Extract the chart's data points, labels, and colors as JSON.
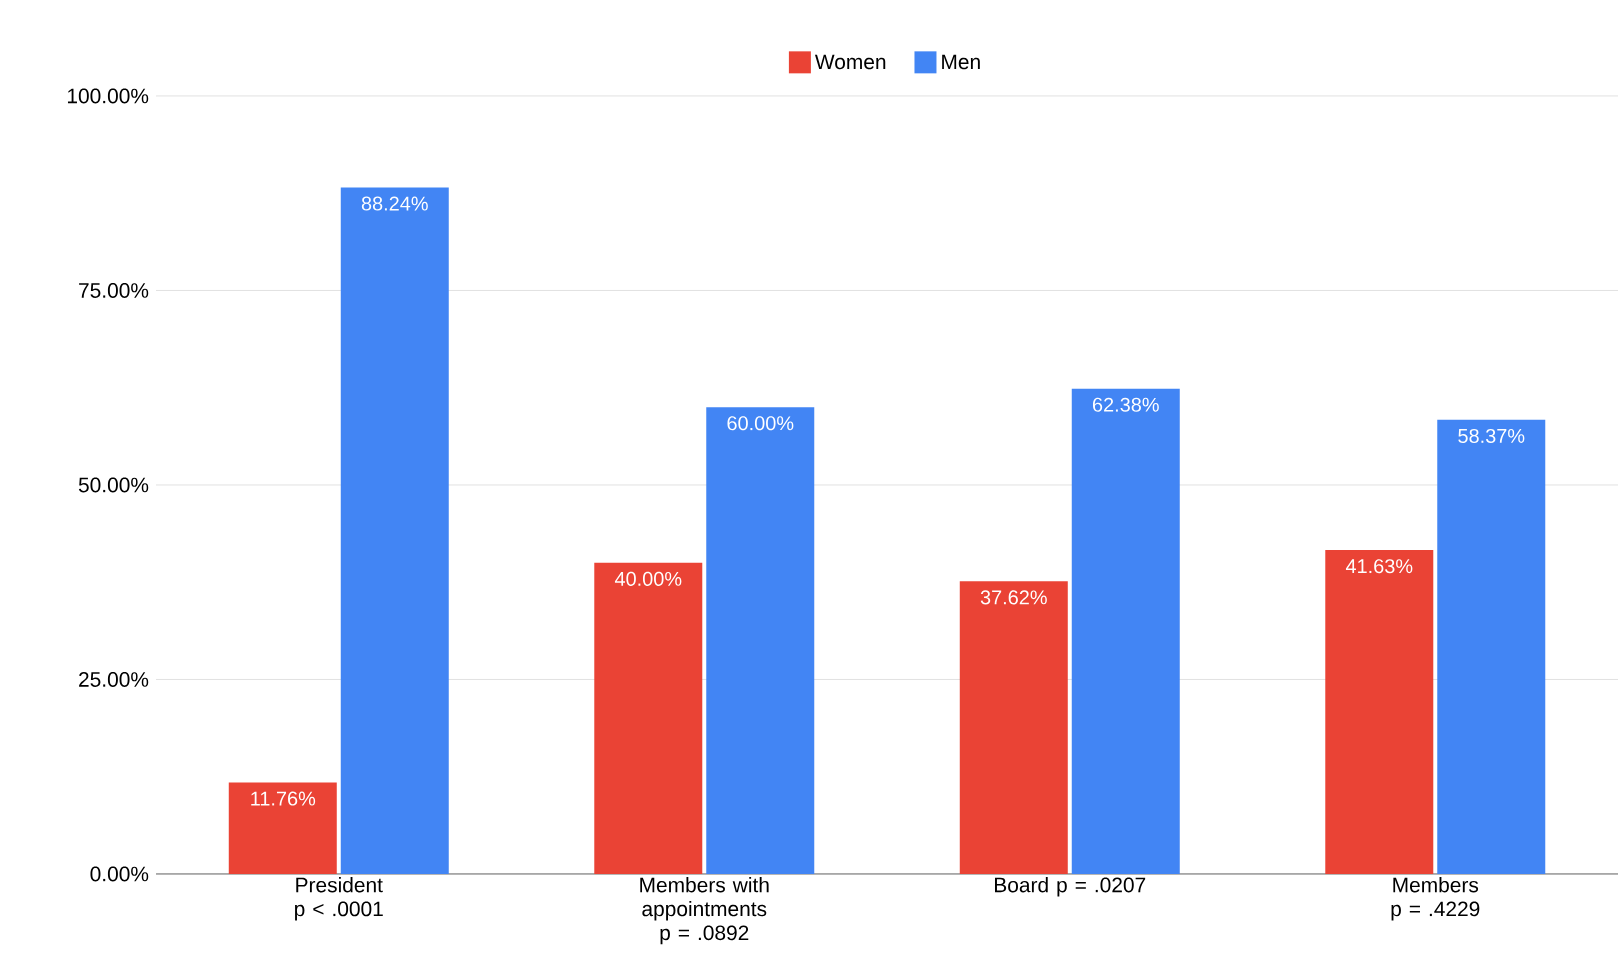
{
  "chart_data": {
    "type": "bar",
    "categories": [
      "President p < .0001",
      "Members with appointments p = .0892",
      "Board p = .0207",
      "Members p = .4229"
    ],
    "series": [
      {
        "name": "Women",
        "color": "#ea4335",
        "values": [
          11.76,
          40.0,
          37.62,
          41.63
        ],
        "value_labels": [
          "11.76%",
          "40.00%",
          "37.62%",
          "41.63%"
        ]
      },
      {
        "name": "Men",
        "color": "#4285f4",
        "values": [
          88.24,
          60.0,
          62.38,
          58.37
        ],
        "value_labels": [
          "88.24%",
          "60.00%",
          "62.38%",
          "58.37%"
        ]
      }
    ],
    "ylim": [
      0,
      100
    ],
    "yticks": [
      {
        "value": 0,
        "label": "0.00%"
      },
      {
        "value": 25,
        "label": "25.00%"
      },
      {
        "value": 50,
        "label": "50.00%"
      },
      {
        "value": 75,
        "label": "75.00%"
      },
      {
        "value": 100,
        "label": "100.00%"
      }
    ],
    "grid": "y",
    "legend": "top"
  }
}
